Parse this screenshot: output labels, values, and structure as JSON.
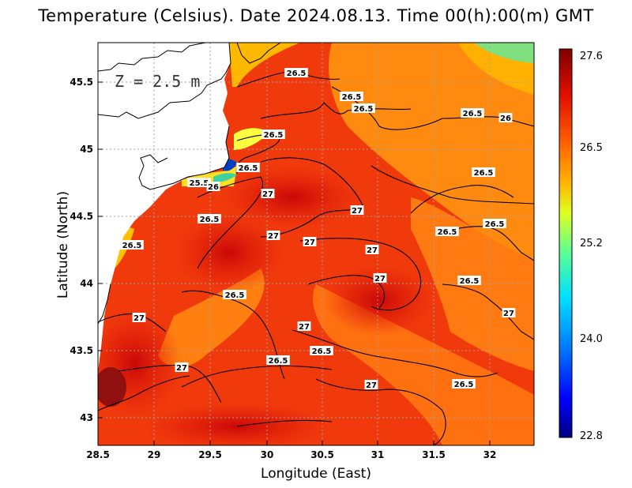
{
  "title": "Temperature (Celsius). Date 2024.08.13. Time 00(h):00(m) GMT",
  "depth_label": "Z = 2.5 m",
  "xlabel": "Longitude (East)",
  "ylabel": "Latitude (North)",
  "x_ticks": [
    "28.5",
    "29",
    "29.5",
    "30",
    "30.5",
    "31",
    "31.5",
    "32"
  ],
  "y_ticks": [
    "45.5",
    "45",
    "44.5",
    "44",
    "43.5",
    "43"
  ],
  "colorbar": {
    "ticks": [
      "27.6",
      "26.5",
      "25.2",
      "24.0",
      "22.8"
    ],
    "min": 22.8,
    "max": 27.6,
    "stops": [
      "#000080",
      "#0000ff",
      "#0080ff",
      "#00ffff",
      "#80ff80",
      "#ffff00",
      "#ffa000",
      "#ff4000",
      "#d00000",
      "#800000"
    ]
  },
  "contour_labels": [
    "26.5",
    "26.5",
    "26.5",
    "26.5",
    "26.5",
    "26",
    "26.5",
    "26.5",
    "25.5",
    "26",
    "27",
    "27",
    "26.5",
    "27",
    "27",
    "26.5",
    "26.5",
    "26.5",
    "27",
    "27",
    "26.5",
    "27",
    "26.5",
    "27",
    "27",
    "26.5",
    "26.5",
    "27",
    "26.5",
    "27"
  ],
  "colors": {
    "land": "#ffffff",
    "coast": "#000000",
    "warm_sea": "#e8200a",
    "mid_sea": "#ff7800",
    "grid": "#a0a0a0"
  }
}
